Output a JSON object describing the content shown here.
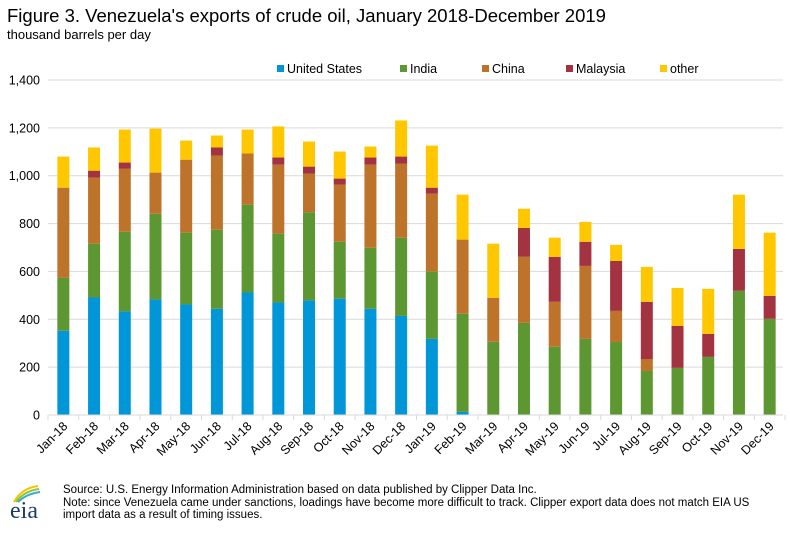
{
  "header": {
    "title": "Figure 3. Venezuela's exports of crude oil, January 2018-December 2019",
    "subtitle": "thousand barrels per day"
  },
  "footer": {
    "source": "Source: U.S. Energy Information Administration based on data published by Clipper Data Inc.",
    "note_line1": "Note: since Venezuela came under sanctions, loadings have become more difficult to track. Clipper export data does not match EIA US",
    "note_line2": "import data as a result of timing issues.",
    "logo_text": "eia",
    "logo_icon": "eia-logo-icon"
  },
  "chart_data": {
    "type": "bar",
    "stacked": true,
    "title": "Figure 3. Venezuela's exports of crude oil, January 2018-December 2019",
    "subtitle": "thousand barrels per day",
    "xlabel": "",
    "ylabel": "thousand barrels per day",
    "ylim": [
      0,
      1400
    ],
    "yticks": [
      0,
      200,
      400,
      600,
      800,
      1000,
      1200,
      1400
    ],
    "ytick_labels": [
      "0",
      "200",
      "400",
      "600",
      "800",
      "1,000",
      "1,200",
      "1,400"
    ],
    "grid": true,
    "legend_position": "top-right",
    "categories": [
      "Jan-18",
      "Feb-18",
      "Mar-18",
      "Apr-18",
      "May-18",
      "Jun-18",
      "Jul-18",
      "Aug-18",
      "Sep-18",
      "Oct-18",
      "Nov-18",
      "Dec-18",
      "Jan-19",
      "Feb-19",
      "Mar-19",
      "Apr-19",
      "May-19",
      "Jun-19",
      "Jul-19",
      "Aug-19",
      "Sep-19",
      "Oct-19",
      "Nov-19",
      "Dec-19"
    ],
    "series": [
      {
        "name": "United States",
        "color": "#0096D7",
        "values": [
          352,
          491,
          433,
          483,
          462,
          444,
          512,
          470,
          479,
          486,
          444,
          414,
          318,
          13,
          0,
          0,
          0,
          0,
          0,
          0,
          0,
          0,
          0,
          0
        ]
      },
      {
        "name": "India",
        "color": "#5D9732",
        "values": [
          221,
          225,
          333,
          358,
          300,
          330,
          367,
          288,
          368,
          238,
          255,
          327,
          281,
          410,
          306,
          385,
          285,
          318,
          305,
          184,
          197,
          243,
          519,
          402
        ]
      },
      {
        "name": "China",
        "color": "#BD732A",
        "values": [
          377,
          276,
          264,
          172,
          305,
          310,
          214,
          288,
          162,
          239,
          347,
          310,
          326,
          310,
          184,
          276,
          188,
          305,
          130,
          50,
          0,
          0,
          0,
          0
        ]
      },
      {
        "name": "Malaysia",
        "color": "#A33340",
        "values": [
          0,
          29,
          25,
          0,
          0,
          34,
          0,
          30,
          29,
          25,
          30,
          29,
          25,
          0,
          0,
          121,
          188,
          101,
          209,
          239,
          175,
          96,
          175,
          96
        ]
      },
      {
        "name": "other",
        "color": "#FFC700",
        "values": [
          130,
          97,
          138,
          184,
          80,
          50,
          100,
          130,
          105,
          113,
          46,
          151,
          176,
          188,
          226,
          80,
          80,
          83,
          67,
          146,
          159,
          188,
          227,
          264
        ]
      }
    ]
  }
}
